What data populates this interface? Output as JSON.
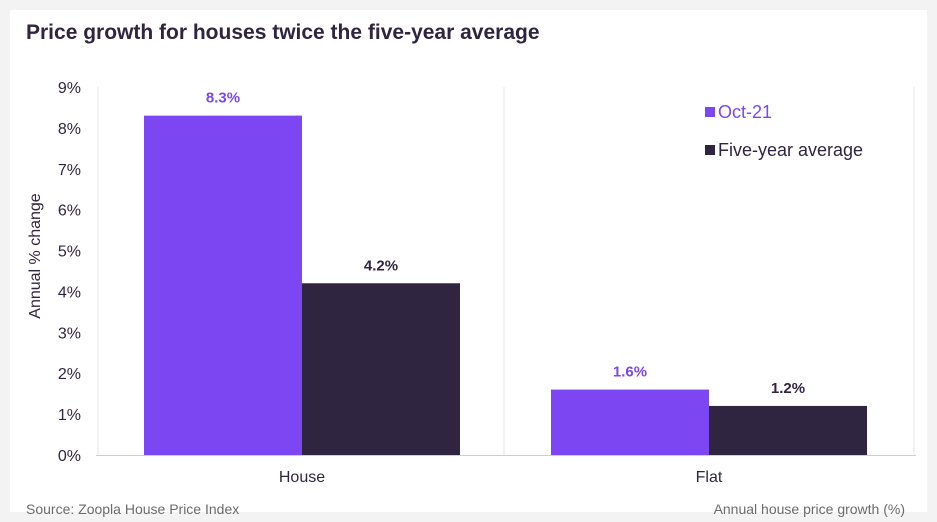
{
  "title": "Price growth for houses twice the five-year average",
  "source": "Source: Zoopla House Price Index",
  "note": "Annual house price growth (%)",
  "colors": {
    "primary": "#7c46f2",
    "secondary": "#2f2540",
    "text": "#2f2540",
    "muted": "#6b6b6b",
    "grid": "#e6e6e6"
  },
  "chart_data": {
    "type": "bar",
    "ylabel": "Annual % change",
    "ylim": [
      0,
      9
    ],
    "yticks": [
      "0%",
      "1%",
      "2%",
      "3%",
      "4%",
      "5%",
      "6%",
      "7%",
      "8%",
      "9%"
    ],
    "categories": [
      "House",
      "Flat"
    ],
    "series": [
      {
        "name": "Oct-21",
        "values": [
          8.3,
          1.6
        ],
        "labels": [
          "8.3%",
          "1.6%"
        ],
        "color": "#7c46f2",
        "label_color": "#7c46f2"
      },
      {
        "name": "Five-year average",
        "values": [
          4.2,
          1.2
        ],
        "labels": [
          "4.2%",
          "1.2%"
        ],
        "color": "#2f2540",
        "label_color": "#2f2540"
      }
    ],
    "legend": "top-right",
    "grid": false
  }
}
